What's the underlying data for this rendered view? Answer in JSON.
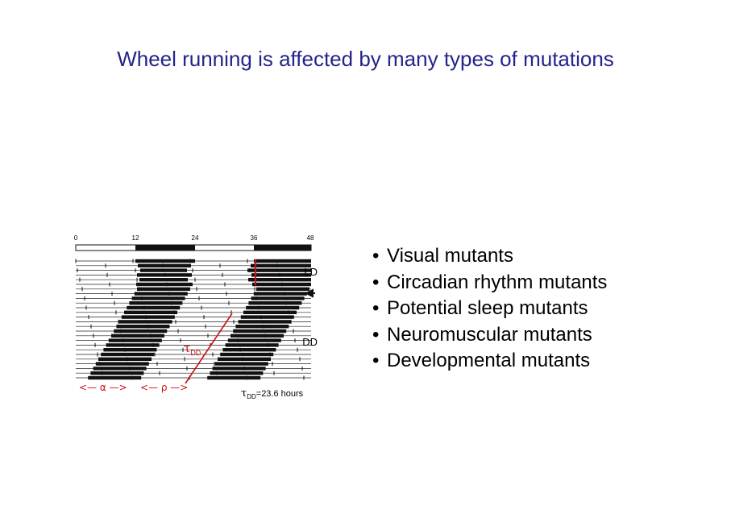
{
  "slide": {
    "title": "Wheel running is affected by many types of mutations"
  },
  "figure": {
    "axis_ticks": [
      "0",
      "12",
      "24",
      "36",
      "48"
    ],
    "label_ld": "LD",
    "label_dd": "DD",
    "label_tau": "τ",
    "label_tau_sub": "DD",
    "label_alpha": "<— α —>",
    "label_rho": "<— ρ —>",
    "caption_tau": "τ",
    "caption_sub": "DD",
    "caption_value": "=23.6 hours",
    "colors": {
      "annotation": "#cc1111",
      "ink": "#111111"
    }
  },
  "bullets": [
    "Visual mutants",
    "Circadian rhythm mutants",
    "Potential sleep mutants",
    "Neuromuscular mutants",
    "Developmental  mutants"
  ]
}
